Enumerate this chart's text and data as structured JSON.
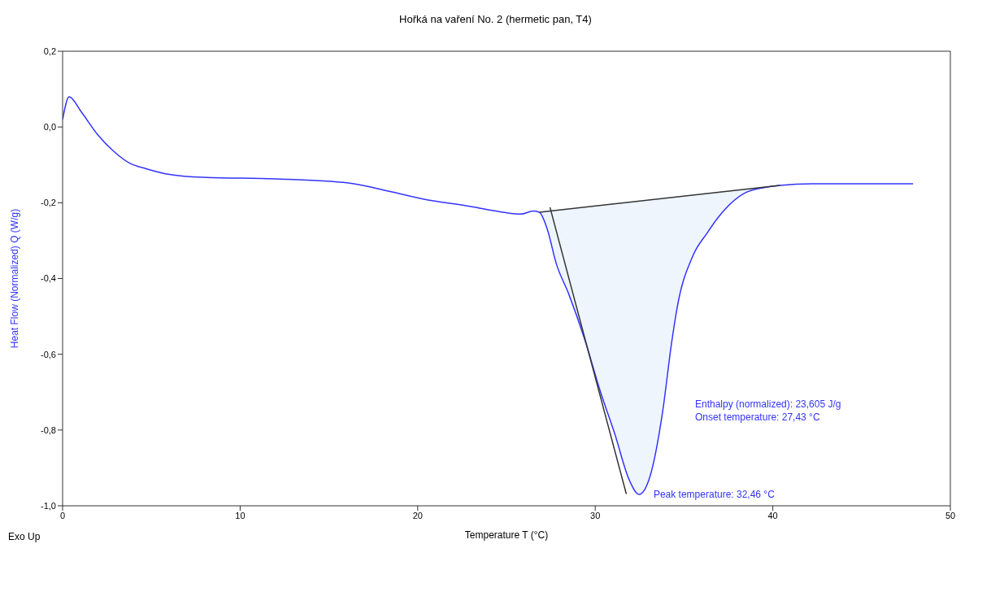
{
  "chart_data": {
    "type": "line",
    "title": "Hořká na vaření No. 2 (hermetic pan, T4)",
    "xlabel": "Temperature T (°C)",
    "ylabel": "Heat Flow (Normalized) Q (W/g)",
    "xlim": [
      0,
      50
    ],
    "xticks": [
      0,
      10,
      20,
      30,
      40,
      50
    ],
    "ylim": [
      -1.0,
      0.2
    ],
    "yticks": [
      {
        "value": 0.2,
        "label": "0,2"
      },
      {
        "value": 0.0,
        "label": "0,0"
      },
      {
        "value": -0.2,
        "label": "-0,2"
      },
      {
        "value": -0.4,
        "label": "-0,4"
      },
      {
        "value": -0.6,
        "label": "-0,6"
      },
      {
        "value": -0.8,
        "label": "-0,8"
      },
      {
        "value": -1.0,
        "label": "-1,0"
      }
    ],
    "grid": false,
    "marker": "none",
    "line_style": "solid",
    "series": [
      {
        "color": "#3333ff",
        "x": [
          0,
          0.37,
          1.05,
          1.97,
          2.9,
          3.8,
          4.7,
          6.1,
          7.9,
          12,
          16.1,
          18.4,
          20.3,
          23,
          24.8,
          25.8,
          26.5,
          26.85,
          27.3,
          27.8,
          28.5,
          29.4,
          30.3,
          31.1,
          31.9,
          32.46,
          33.1,
          33.8,
          34.3,
          34.6,
          35.5,
          36.3,
          36.9,
          38.4,
          39.5,
          40.4,
          42.2,
          47.9
        ],
        "values": [
          0.02,
          0.08,
          0.04,
          -0.02,
          -0.065,
          -0.096,
          -0.11,
          -0.126,
          -0.133,
          -0.137,
          -0.148,
          -0.17,
          -0.19,
          -0.21,
          -0.225,
          -0.23,
          -0.222,
          -0.225,
          -0.27,
          -0.36,
          -0.44,
          -0.56,
          -0.7,
          -0.81,
          -0.93,
          -0.97,
          -0.92,
          -0.75,
          -0.57,
          -0.48,
          -0.34,
          -0.28,
          -0.24,
          -0.175,
          -0.16,
          -0.154,
          -0.15,
          -0.15
        ],
        "lower": [
          null,
          null,
          null,
          null,
          null,
          null,
          null,
          null,
          null,
          null,
          null,
          null,
          null,
          null,
          null,
          null,
          null,
          -0.225,
          -0.27,
          -0.36,
          -0.44,
          -0.56,
          -0.7,
          -0.81,
          -0.93,
          -0.97,
          -0.92,
          -0.75,
          -0.57,
          -0.48,
          -0.34,
          -0.28,
          -0.24,
          -0.175,
          -0.16,
          -0.154,
          null,
          null
        ],
        "upper": [
          null,
          null,
          null,
          null,
          null,
          null,
          null,
          null,
          null,
          null,
          null,
          null,
          null,
          null,
          null,
          null,
          null,
          -0.225,
          -0.223,
          -0.22,
          -0.216,
          -0.212,
          -0.207,
          -0.203,
          -0.199,
          -0.196,
          -0.192,
          -0.189,
          -0.186,
          -0.184,
          -0.181,
          -0.176,
          -0.172,
          -0.165,
          -0.159,
          -0.154,
          null,
          null
        ]
      },
      {
        "color": "#333333",
        "x": [
          26.85,
          40.4
        ],
        "values": [
          -0.225,
          -0.154
        ]
      },
      {
        "color": "#333333",
        "x": [
          27.45,
          31.75
        ],
        "values": [
          -0.212,
          -0.969
        ]
      }
    ],
    "annotations": [
      "Exo Up",
      "Enthalpy (normalized): 23,605 J/g",
      "Onset temperature: 27,43 °C",
      {
        "text": "Peak temperature: 32,46 °C",
        "x": 32.46,
        "y": -0.97
      }
    ]
  }
}
